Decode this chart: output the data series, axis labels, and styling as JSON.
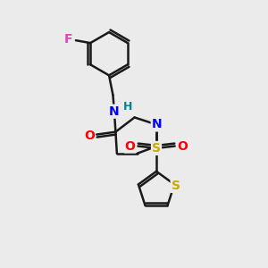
{
  "background_color": "#ebebeb",
  "bond_color": "#1a1a1a",
  "atom_colors": {
    "F": "#dd44bb",
    "N": "#0000ff",
    "O": "#ff0000",
    "S_sulfonyl": "#ccaa00",
    "S_thiophene": "#ccaa00",
    "H": "#008888",
    "C": "#1a1a1a"
  },
  "figsize": [
    3.0,
    3.0
  ],
  "dpi": 100,
  "xlim": [
    0,
    10
  ],
  "ylim": [
    0,
    10
  ]
}
